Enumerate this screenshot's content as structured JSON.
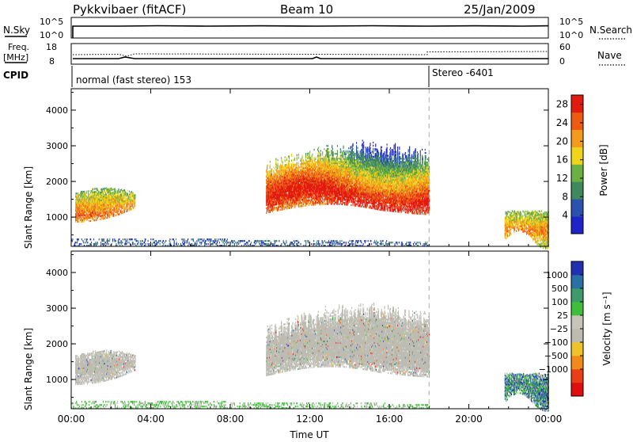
{
  "header": {
    "station": "Pykkvibaer (fitACF)",
    "beam": "Beam 10",
    "date": "25/Jan/2009"
  },
  "top_panels": {
    "nsky": {
      "label": "N.Sky",
      "top_tick": "10^5",
      "bottom_tick": "10^0"
    },
    "nsearch": {
      "label": "N.Search",
      "top_tick": "10^5",
      "bottom_tick": "10^0"
    },
    "freq": {
      "label_line1": "Freq.",
      "label_line2": "[MHz]",
      "top_tick": "18",
      "bottom_tick": "8"
    },
    "nave": {
      "label": "Nave",
      "top_tick": "60",
      "bottom_tick": "0"
    },
    "cpid": {
      "label": "CPID",
      "mode1": "normal (fast stereo) 153",
      "mode2": "Stereo -6401"
    }
  },
  "colors": {
    "power": [
      "#1f24c8",
      "#2c52b0",
      "#3f8a5d",
      "#6ab043",
      "#f0d41c",
      "#f29b1d",
      "#ec5a14",
      "#e21b0f"
    ],
    "velocity": [
      "#e10e0e",
      "#ea3e14",
      "#f08a1a",
      "#f1c12a",
      "#bebbb1",
      "#c8c4b8",
      "#3fbe3a",
      "#3f9a6a",
      "#2a6fa5",
      "#2030b0"
    ],
    "ground_scatter": "#bdbcb2"
  },
  "chart_data": [
    {
      "type": "heatmap",
      "name": "Power",
      "xlabel": "Time UT",
      "ylabel": "Slant Range [km]",
      "x_ticks": [
        "00:00",
        "04:00",
        "08:00",
        "12:00",
        "16:00",
        "20:00",
        "00:00"
      ],
      "y_ticks": [
        "1000",
        "2000",
        "3000",
        "4000"
      ],
      "xlim_hours": [
        0,
        24
      ],
      "ylim_km": [
        180,
        4600
      ],
      "colorbar": {
        "label": "Power [dB]",
        "ticks": [
          "4",
          "8",
          "12",
          "16",
          "20",
          "24",
          "28"
        ],
        "range": [
          0,
          30
        ]
      },
      "mode_change_hour": 18,
      "regions": [
        {
          "t0": 0.2,
          "t1": 3.2,
          "r0": 800,
          "r1": 1800,
          "peak_dB": 24,
          "core_km": 1050
        },
        {
          "t0": 9.8,
          "t1": 18.0,
          "r0": 1000,
          "r1": 3200,
          "peak_dB": 30,
          "core_km": 1500
        },
        {
          "t0": 21.8,
          "t1": 24.0,
          "r0": 300,
          "r1": 1200,
          "peak_dB": 22,
          "core_km": 600
        },
        {
          "t0": 0.0,
          "t1": 18.0,
          "r0": 180,
          "r1": 400,
          "peak_dB": 6,
          "core_km": 250
        }
      ]
    },
    {
      "type": "heatmap",
      "name": "Velocity",
      "xlabel": "Time UT",
      "ylabel": "Slant Range [km]",
      "x_ticks": [
        "00:00",
        "04:00",
        "08:00",
        "12:00",
        "16:00",
        "20:00",
        "00:00"
      ],
      "y_ticks": [
        "1000",
        "2000",
        "3000",
        "4000"
      ],
      "xlim_hours": [
        0,
        24
      ],
      "ylim_km": [
        180,
        4600
      ],
      "colorbar": {
        "label": "Velocity [m s⁻¹]",
        "ticks": [
          "1000",
          "500",
          "100",
          "25",
          "−25",
          "−100",
          "−500",
          "−1000"
        ]
      },
      "regions": [
        {
          "t0": 0.2,
          "t1": 3.2,
          "r0": 800,
          "r1": 1800,
          "kind": "ground_scatter"
        },
        {
          "t0": 9.8,
          "t1": 18.0,
          "r0": 1000,
          "r1": 3200,
          "kind": "ground_scatter"
        },
        {
          "t0": 21.8,
          "t1": 24.0,
          "r0": 300,
          "r1": 1200,
          "kind": "mixed"
        },
        {
          "t0": 0.0,
          "t1": 18.0,
          "r0": 180,
          "r1": 400,
          "kind": "low_positive"
        }
      ]
    }
  ]
}
